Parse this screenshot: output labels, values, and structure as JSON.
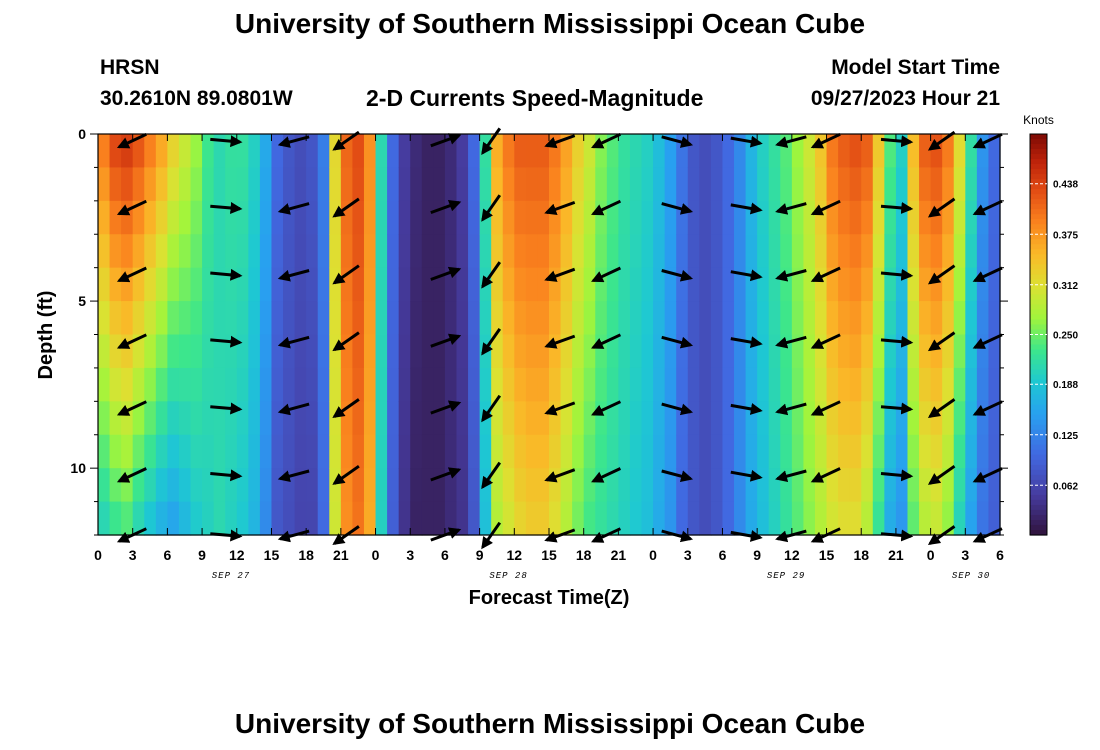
{
  "header": {
    "title": "University of Southern Mississippi Ocean Cube",
    "station": "HRSN",
    "coords": "30.2610N  89.0801W",
    "plot_title": "2-D Currents Speed-Magnitude",
    "model_label": "Model Start Time",
    "model_time": "09/27/2023 Hour 21"
  },
  "footer": {
    "title": "University of Southern Mississippi Ocean Cube"
  },
  "colors": {
    "background": "#ffffff",
    "arrow": "#000000",
    "grid_tick": "#000000"
  },
  "chart_data": {
    "type": "heatmap",
    "title": "2-D Currents Speed-Magnitude",
    "xlabel": "Forecast Time(Z)",
    "ylabel": "Depth (ft)",
    "x_range_hours": [
      0,
      78
    ],
    "ylim": [
      0,
      12
    ],
    "y_ticks": [
      "0",
      "5",
      "10"
    ],
    "y_tick_values": [
      0,
      5,
      10
    ],
    "x_tick_labels": [
      "0",
      "3",
      "6",
      "9",
      "12",
      "15",
      "18",
      "21",
      "0",
      "3",
      "6",
      "9",
      "12",
      "15",
      "18",
      "21",
      "0",
      "3",
      "6",
      "9",
      "12",
      "15",
      "18",
      "21",
      "0",
      "3",
      "6"
    ],
    "date_labels": [
      {
        "label": "SEP 27",
        "hour": 11.5
      },
      {
        "label": "SEP 28",
        "hour": 35.5
      },
      {
        "label": "SEP 29",
        "hour": 59.5
      },
      {
        "label": "SEP 30",
        "hour": 75.5
      }
    ],
    "colorbar": {
      "unit": "Knots",
      "min": 0.0,
      "max": 0.5,
      "ticks": [
        "0.438",
        "0.375",
        "0.312",
        "0.250",
        "0.188",
        "0.125",
        "0.062"
      ],
      "tick_values": [
        0.438,
        0.375,
        0.312,
        0.25,
        0.188,
        0.125,
        0.062
      ]
    },
    "speed_profile": {
      "hours": [
        0,
        1,
        2,
        3,
        4,
        5,
        6,
        7,
        8,
        9,
        10,
        11,
        12,
        13,
        14,
        15,
        16,
        17,
        18,
        19,
        20,
        21,
        22,
        23,
        24,
        25,
        26,
        27,
        28,
        29,
        30,
        31,
        32,
        33,
        34,
        35,
        36,
        37,
        38,
        39,
        40,
        41,
        42,
        43,
        44,
        45,
        46,
        47,
        48,
        49,
        50,
        51,
        52,
        53,
        54,
        55,
        56,
        57,
        58,
        59,
        60,
        61,
        62,
        63,
        64,
        65,
        66,
        67,
        68,
        69,
        70,
        71,
        72,
        73,
        74,
        75,
        76,
        77,
        78
      ],
      "surface": [
        0.4,
        0.44,
        0.45,
        0.43,
        0.4,
        0.37,
        0.33,
        0.3,
        0.27,
        0.23,
        0.21,
        0.22,
        0.22,
        0.2,
        0.16,
        0.1,
        0.08,
        0.07,
        0.08,
        0.12,
        0.32,
        0.41,
        0.43,
        0.38,
        0.21,
        0.1,
        0.05,
        0.03,
        0.02,
        0.02,
        0.03,
        0.05,
        0.1,
        0.22,
        0.36,
        0.4,
        0.42,
        0.42,
        0.42,
        0.4,
        0.37,
        0.33,
        0.3,
        0.26,
        0.24,
        0.22,
        0.21,
        0.2,
        0.18,
        0.15,
        0.11,
        0.08,
        0.07,
        0.08,
        0.1,
        0.13,
        0.17,
        0.2,
        0.22,
        0.24,
        0.27,
        0.3,
        0.34,
        0.4,
        0.42,
        0.43,
        0.42,
        0.34,
        0.24,
        0.2,
        0.35,
        0.42,
        0.43,
        0.4,
        0.32,
        0.22,
        0.14,
        0.1,
        0.1
      ],
      "bottom": [
        0.2,
        0.22,
        0.23,
        0.2,
        0.18,
        0.16,
        0.15,
        0.17,
        0.19,
        0.2,
        0.21,
        0.2,
        0.19,
        0.17,
        0.13,
        0.08,
        0.07,
        0.06,
        0.06,
        0.1,
        0.3,
        0.38,
        0.4,
        0.36,
        0.2,
        0.09,
        0.04,
        0.02,
        0.02,
        0.02,
        0.03,
        0.04,
        0.08,
        0.18,
        0.28,
        0.3,
        0.32,
        0.33,
        0.33,
        0.31,
        0.28,
        0.25,
        0.23,
        0.22,
        0.21,
        0.2,
        0.19,
        0.18,
        0.16,
        0.14,
        0.1,
        0.08,
        0.07,
        0.08,
        0.1,
        0.13,
        0.16,
        0.18,
        0.2,
        0.22,
        0.24,
        0.26,
        0.28,
        0.3,
        0.31,
        0.31,
        0.28,
        0.22,
        0.16,
        0.14,
        0.24,
        0.28,
        0.29,
        0.26,
        0.2,
        0.15,
        0.11,
        0.09,
        0.09
      ]
    },
    "vectors": {
      "depths": [
        0.2,
        2.2,
        4.2,
        6.2,
        8.2,
        10.2,
        12.0
      ],
      "columns": [
        {
          "hour": 3,
          "angle_deg": 205
        },
        {
          "hour": 11,
          "angle_deg": 355
        },
        {
          "hour": 17,
          "angle_deg": 195
        },
        {
          "hour": 21.5,
          "angle_deg": 215
        },
        {
          "hour": 30,
          "angle_deg": 20
        },
        {
          "hour": 34,
          "angle_deg": 235
        },
        {
          "hour": 40,
          "angle_deg": 200
        },
        {
          "hour": 44,
          "angle_deg": 205
        },
        {
          "hour": 50,
          "angle_deg": 345
        },
        {
          "hour": 56,
          "angle_deg": 350
        },
        {
          "hour": 60,
          "angle_deg": 195
        },
        {
          "hour": 63,
          "angle_deg": 205
        },
        {
          "hour": 69,
          "angle_deg": 355
        },
        {
          "hour": 73,
          "angle_deg": 215
        },
        {
          "hour": 77,
          "angle_deg": 205
        }
      ]
    }
  }
}
